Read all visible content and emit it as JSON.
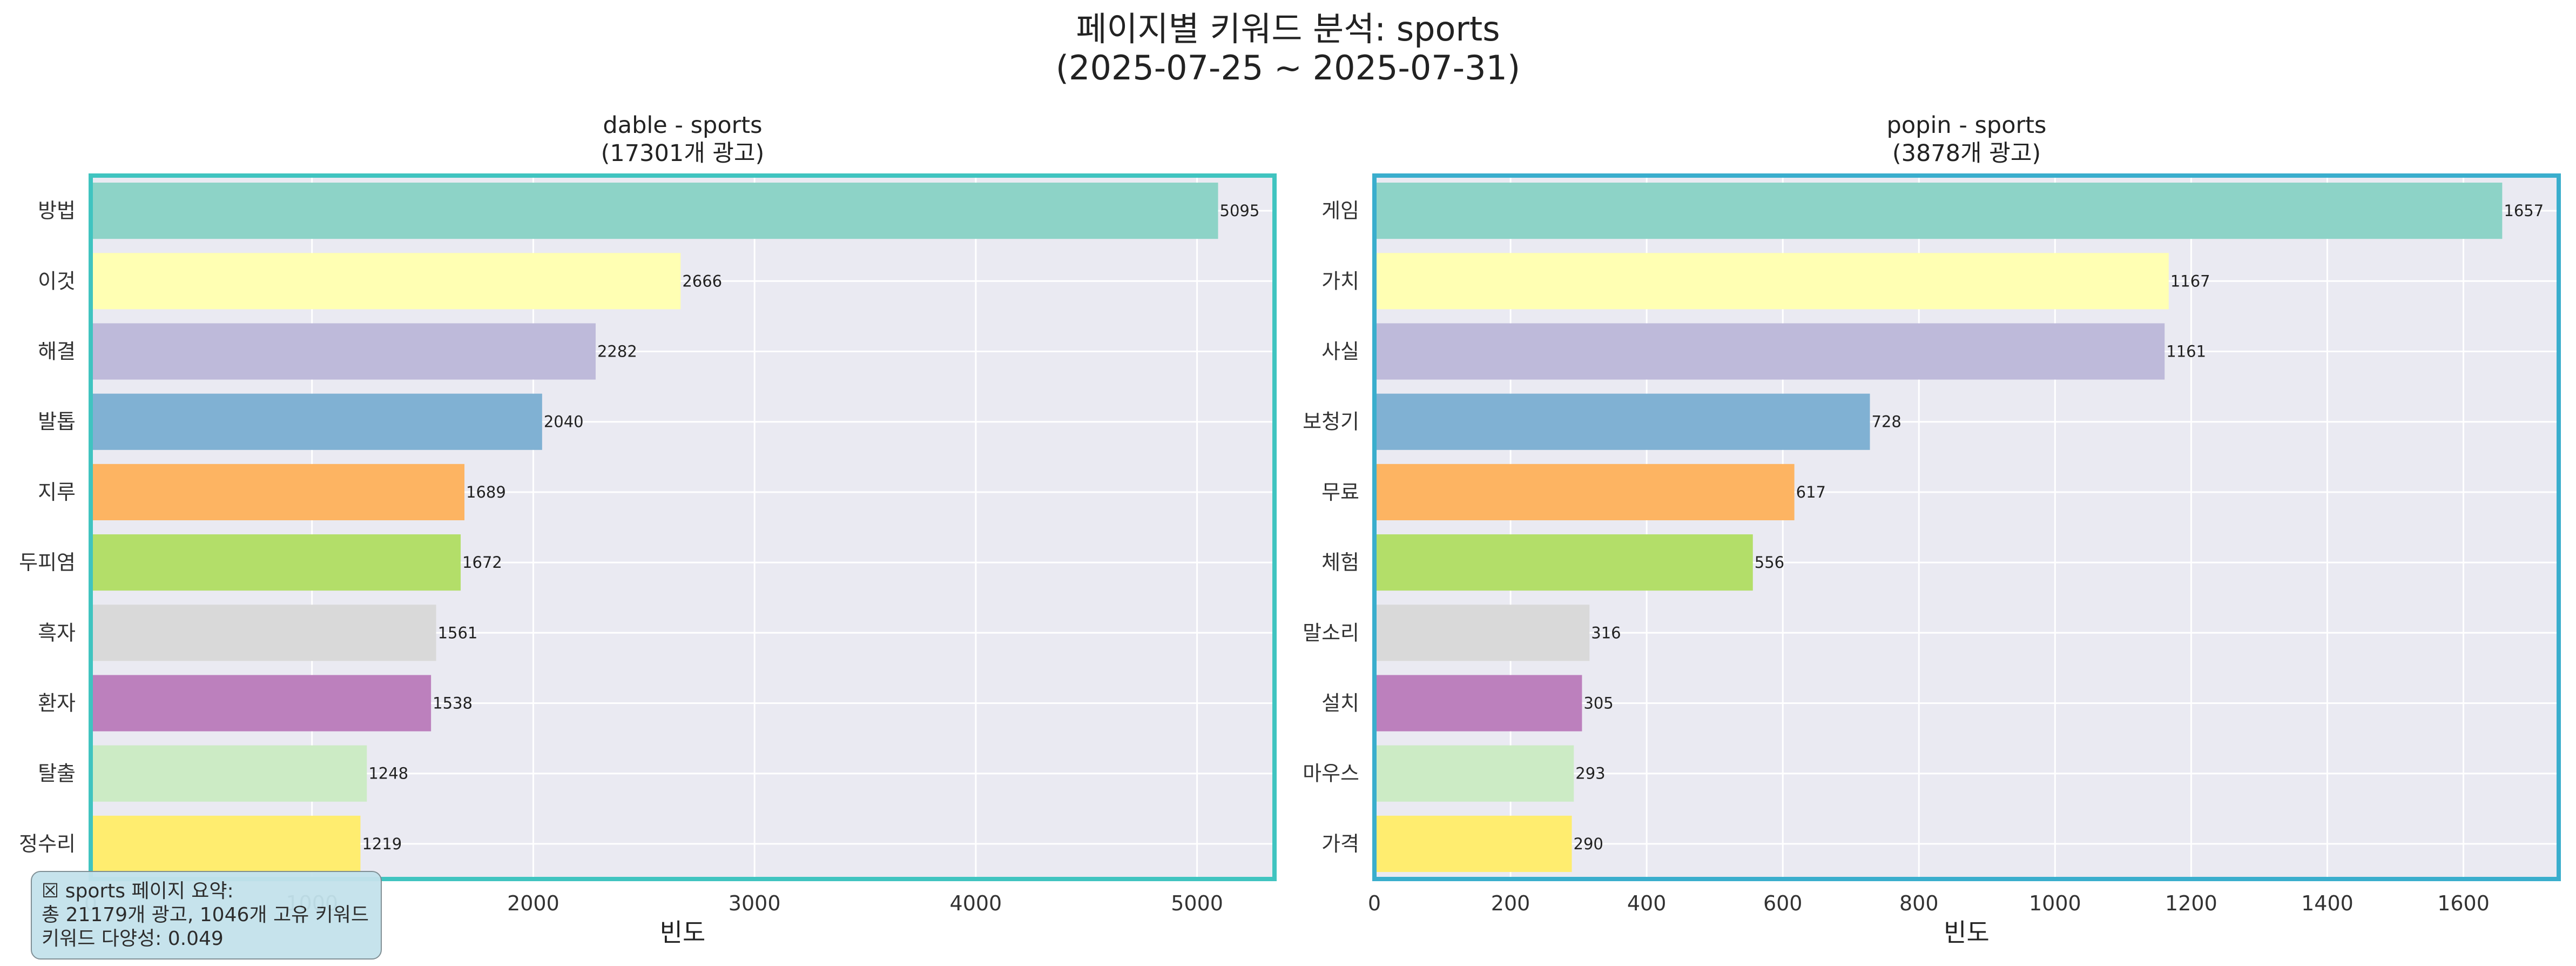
{
  "figure": {
    "title_line1": "페이지별 키워드 분석: sports",
    "title_line2": "(2025-07-25 ~ 2025-07-31)"
  },
  "summary": {
    "line1": "☒ sports 페이지 요약:",
    "line2": "총 21179개 광고, 1046개 고유 키워드",
    "line3": "키워드 다양성: 0.049"
  },
  "colors": [
    "#8dd3c7",
    "#ffffb3",
    "#bebada",
    "#80b1d3",
    "#fdb462",
    "#b3de69",
    "#d9d9d9",
    "#bc80bd",
    "#ccebc5",
    "#ffed6f"
  ],
  "chart_data": [
    {
      "type": "bar",
      "orientation": "horizontal",
      "title_line1": "dable - sports",
      "title_line2": "(17301개 광고)",
      "xlabel": "빈도",
      "ylabel": "",
      "xlim": [
        0,
        5350
      ],
      "xticks": [
        0,
        1000,
        2000,
        3000,
        4000,
        5000
      ],
      "grid": true,
      "frame_color": "#40c4c0",
      "categories": [
        "방법",
        "이것",
        "해결",
        "발톱",
        "지루",
        "두피염",
        "흑자",
        "환자",
        "탈출",
        "정수리"
      ],
      "values": [
        5095,
        2666,
        2282,
        2040,
        1689,
        1672,
        1561,
        1538,
        1248,
        1219
      ]
    },
    {
      "type": "bar",
      "orientation": "horizontal",
      "title_line1": "popin - sports",
      "title_line2": "(3878개 광고)",
      "xlabel": "빈도",
      "ylabel": "",
      "xlim": [
        0,
        1740
      ],
      "xticks": [
        0,
        200,
        400,
        600,
        800,
        1000,
        1200,
        1400,
        1600
      ],
      "grid": true,
      "frame_color": "#3aaecd",
      "categories": [
        "게임",
        "가치",
        "사실",
        "보청기",
        "무료",
        "체험",
        "말소리",
        "설치",
        "마우스",
        "가격"
      ],
      "values": [
        1657,
        1167,
        1161,
        728,
        617,
        556,
        316,
        305,
        293,
        290
      ]
    }
  ]
}
